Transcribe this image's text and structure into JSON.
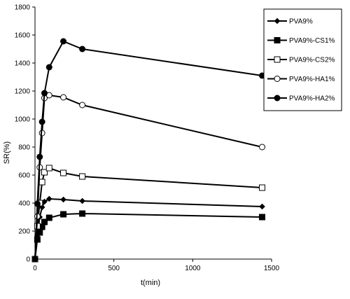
{
  "chart_data": {
    "type": "line",
    "title": "",
    "xlabel": "t(min)",
    "ylabel": "SR(%)",
    "xlim": [
      0,
      1500
    ],
    "ylim": [
      0,
      1800
    ],
    "xticks": [
      0,
      500,
      1000,
      1500
    ],
    "yticks": [
      0,
      200,
      400,
      600,
      800,
      1000,
      1200,
      1400,
      1600,
      1800
    ],
    "grid": false,
    "legend_position": "right",
    "series": [
      {
        "name": "PVA9%",
        "marker": "diamond",
        "x": [
          0,
          15,
          30,
          45,
          60,
          90,
          180,
          300,
          1440
        ],
        "y": [
          0,
          170,
          300,
          370,
          410,
          430,
          425,
          415,
          375
        ]
      },
      {
        "name": "PVA9%-CS1%",
        "marker": "square-filled",
        "x": [
          0,
          15,
          30,
          45,
          60,
          90,
          180,
          300,
          1440
        ],
        "y": [
          0,
          140,
          190,
          230,
          265,
          295,
          320,
          325,
          300
        ]
      },
      {
        "name": "PVA9%-CS2%",
        "marker": "square-open",
        "x": [
          0,
          15,
          30,
          45,
          60,
          90,
          180,
          300,
          1440
        ],
        "y": [
          0,
          235,
          400,
          550,
          620,
          650,
          615,
          590,
          510
        ]
      },
      {
        "name": "PVA9%-HA1%",
        "marker": "circle-open",
        "x": [
          0,
          15,
          30,
          45,
          60,
          90,
          180,
          300,
          1440
        ],
        "y": [
          0,
          305,
          655,
          900,
          1150,
          1170,
          1155,
          1100,
          800
        ]
      },
      {
        "name": "PVA9%-HA2%",
        "marker": "circle-filled",
        "x": [
          0,
          15,
          30,
          45,
          60,
          90,
          180,
          300,
          1440
        ],
        "y": [
          0,
          395,
          730,
          980,
          1185,
          1370,
          1555,
          1500,
          1310
        ]
      }
    ]
  }
}
